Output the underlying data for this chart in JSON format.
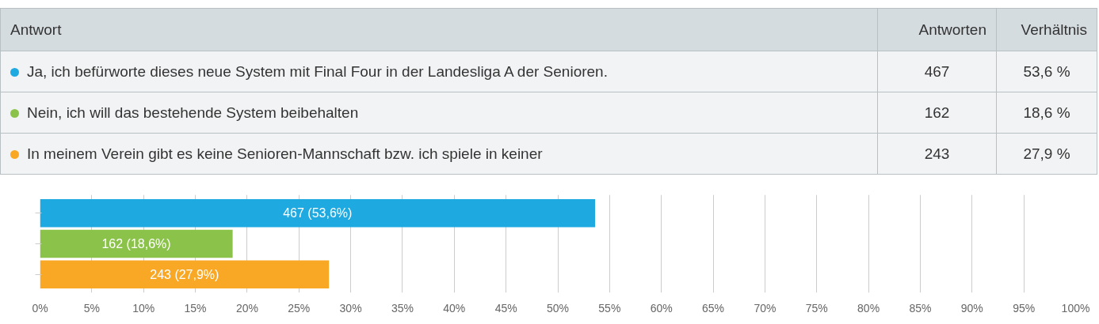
{
  "chart_data": {
    "type": "bar",
    "orientation": "horizontal",
    "categories": [
      null,
      null,
      null
    ],
    "values": [
      53.6,
      18.6,
      27.9
    ],
    "colors": [
      "#1fa9e1",
      "#8bc34a",
      "#f9a825"
    ],
    "value_labels": [
      "467 (53,6%)",
      "162 (18,6%)",
      "243 (27,9%)"
    ],
    "annotations": [
      "Antwort",
      "Antworten",
      "Verhältnis",
      "Ja, ich befürworte dieses neue System mit Final Four in der Landesliga A der Senioren.",
      "467",
      "53,6 %",
      "Nein, ich will das bestehende System beibehalten",
      "162",
      "18,6 %",
      "In meinem Verein gibt es keine Senioren-Mannschaft bzw. ich spiele in keiner",
      "243",
      "27,9 %"
    ],
    "xlim": [
      0,
      100
    ],
    "xticks": [
      {
        "value": 0,
        "label": "0%"
      },
      {
        "value": 5,
        "label": "5%"
      },
      {
        "value": 10,
        "label": "10%"
      },
      {
        "value": 15,
        "label": "15%"
      },
      {
        "value": 20,
        "label": "20%"
      },
      {
        "value": 25,
        "label": "25%"
      },
      {
        "value": 30,
        "label": "30%"
      },
      {
        "value": 35,
        "label": "35%"
      },
      {
        "value": 40,
        "label": "40%"
      },
      {
        "value": 45,
        "label": "45%"
      },
      {
        "value": 50,
        "label": "50%"
      },
      {
        "value": 55,
        "label": "55%"
      },
      {
        "value": 60,
        "label": "60%"
      },
      {
        "value": 65,
        "label": "65%"
      },
      {
        "value": 70,
        "label": "70%"
      },
      {
        "value": 75,
        "label": "75%"
      },
      {
        "value": 80,
        "label": "80%"
      },
      {
        "value": 85,
        "label": "85%"
      },
      {
        "value": 90,
        "label": "90%"
      },
      {
        "value": 95,
        "label": "95%"
      },
      {
        "value": 100,
        "label": "100%"
      }
    ],
    "grid": "x",
    "tick_labels": "x"
  }
}
